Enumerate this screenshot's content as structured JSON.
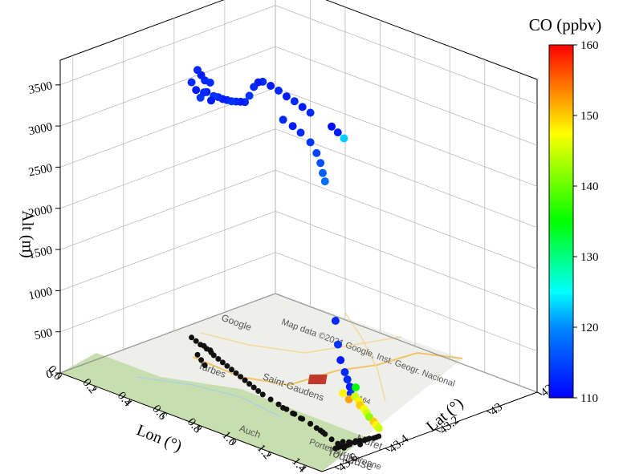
{
  "chart_data": {
    "type": "scatter",
    "dimensions": "3d",
    "title": "",
    "xlabel": "Lon (°)",
    "ylabel": "Lat (°)",
    "zlabel": "Alt (m)",
    "x_ticks": [
      "0.0",
      "0.2",
      "0.4",
      "0.6",
      "0.8",
      "1.0",
      "1.2",
      "1.4"
    ],
    "y_ticks": [
      "42.8",
      "43",
      "43.2",
      "43.4",
      "43.6"
    ],
    "z_ticks": [
      "0",
      "500",
      "1000",
      "1500",
      "2000",
      "2500",
      "3000",
      "3500"
    ],
    "xlim": [
      0,
      1.5
    ],
    "ylim": [
      42.8,
      43.65
    ],
    "zlim": [
      0,
      3800
    ],
    "colorbar": {
      "label": "CO (ppbv)",
      "ticks": [
        "110",
        "120",
        "130",
        "140",
        "150",
        "160"
      ],
      "range": [
        110,
        160
      ],
      "colors": [
        "#0000ff",
        "#00ffff",
        "#00ff00",
        "#ffff00",
        "#ff0000"
      ]
    },
    "basemap": {
      "labels": [
        "Tarbes",
        "Auch",
        "Saint-Gaudens",
        "Toulouse",
        "Muret",
        "Portet-sur-Garonne",
        "A64",
        "Google",
        "Map data ©2021 Google, Inst. Geogr. Nacional"
      ]
    },
    "series": [
      {
        "points": [
          [
            0.1,
            43.2,
            3100,
            113
          ],
          [
            0.14,
            43.21,
            3050,
            112
          ],
          [
            0.18,
            43.22,
            3000,
            114
          ],
          [
            0.2,
            43.22,
            3080,
            113
          ],
          [
            0.23,
            43.23,
            3120,
            112
          ],
          [
            0.25,
            43.23,
            3250,
            113
          ],
          [
            0.27,
            43.24,
            3060,
            112
          ],
          [
            0.3,
            43.25,
            3150,
            114
          ],
          [
            0.34,
            43.26,
            3180,
            113
          ],
          [
            0.38,
            43.27,
            3200,
            112
          ],
          [
            0.42,
            43.28,
            3230,
            113
          ],
          [
            0.46,
            43.29,
            3260,
            114
          ],
          [
            0.5,
            43.3,
            3300,
            113
          ],
          [
            0.54,
            43.31,
            3340,
            112
          ],
          [
            0.58,
            43.32,
            3380,
            113
          ],
          [
            0.62,
            43.33,
            3500,
            114
          ],
          [
            0.66,
            43.34,
            3650,
            113
          ],
          [
            0.7,
            43.35,
            3750,
            112
          ],
          [
            0.74,
            43.36,
            3800,
            113
          ],
          [
            0.8,
            43.37,
            3810,
            112
          ],
          [
            0.86,
            43.38,
            3810,
            113
          ],
          [
            0.92,
            43.39,
            3800,
            112
          ],
          [
            0.98,
            43.4,
            3800,
            113
          ],
          [
            1.04,
            43.41,
            3790,
            112
          ],
          [
            1.1,
            43.42,
            3780,
            113
          ],
          [
            0.25,
            43.28,
            3460,
            113
          ],
          [
            0.3,
            43.3,
            3460,
            112
          ],
          [
            0.35,
            43.32,
            3460,
            113
          ],
          [
            0.9,
            43.39,
            3500,
            113
          ],
          [
            0.97,
            43.4,
            3490,
            112
          ],
          [
            1.03,
            43.41,
            3470,
            113
          ],
          [
            1.1,
            43.42,
            3420,
            114
          ],
          [
            1.15,
            43.43,
            3340,
            115
          ],
          [
            1.18,
            43.435,
            3250,
            116
          ],
          [
            1.2,
            43.44,
            3150,
            117
          ],
          [
            1.22,
            43.445,
            3070,
            118
          ],
          [
            1.28,
            43.46,
            3800,
            111
          ],
          [
            1.33,
            43.47,
            3780,
            112
          ],
          [
            1.38,
            43.48,
            3760,
            123
          ]
        ]
      },
      {
        "points": [
          [
            1.36,
            43.5,
            1550,
            113
          ],
          [
            1.36,
            43.49,
            1250,
            114
          ],
          [
            1.36,
            43.48,
            1050,
            112
          ],
          [
            1.37,
            43.47,
            900,
            113
          ],
          [
            1.37,
            43.46,
            800,
            113
          ],
          [
            1.37,
            43.45,
            700,
            112
          ],
          [
            1.36,
            43.44,
            600,
            114
          ],
          [
            1.37,
            43.43,
            560,
            145
          ],
          [
            1.38,
            43.42,
            500,
            148
          ],
          [
            1.37,
            43.41,
            430,
            150
          ],
          [
            1.38,
            43.4,
            380,
            147
          ],
          [
            1.38,
            43.39,
            320,
            145
          ],
          [
            1.38,
            43.38,
            260,
            142
          ],
          [
            1.39,
            43.37,
            200,
            150
          ],
          [
            1.39,
            43.36,
            150,
            148
          ],
          [
            1.39,
            43.35,
            100,
            145
          ],
          [
            1.33,
            43.45,
            590,
            148
          ],
          [
            1.35,
            43.44,
            520,
            152
          ],
          [
            1.4,
            43.43,
            480,
            146
          ],
          [
            1.36,
            43.42,
            650,
            135
          ]
        ]
      }
    ]
  }
}
